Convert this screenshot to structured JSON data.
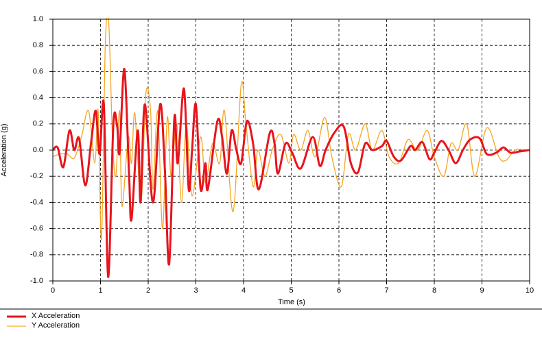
{
  "chart_data": {
    "type": "line",
    "x_label": "Time (s)",
    "y_label": "Acceleration (g)",
    "xlim": [
      0,
      10
    ],
    "ylim": [
      -1,
      1
    ],
    "xticks": [
      0,
      1,
      2,
      3,
      4,
      5,
      6,
      7,
      8,
      9,
      10
    ],
    "yticks": [
      {
        "value": -1,
        "label": "-1.0"
      },
      -0.8,
      -0.6,
      -0.4,
      -0.2,
      {
        "value": 0,
        "label": "0.0"
      },
      0.2,
      0.4,
      0.6,
      0.8,
      {
        "value": 1,
        "label": "1.0"
      }
    ],
    "grid": true,
    "legend": "bottom-left",
    "series": [
      {
        "name": "X Acceleration",
        "color": "#e8141c",
        "width": 3,
        "x": [
          0,
          0.1,
          0.22,
          0.35,
          0.45,
          0.55,
          0.68,
          0.8,
          0.9,
          0.98,
          1.07,
          1.16,
          1.27,
          1.35,
          1.4,
          1.5,
          1.6,
          1.65,
          1.78,
          1.84,
          1.93,
          2.1,
          2.25,
          2.35,
          2.44,
          2.55,
          2.62,
          2.75,
          2.85,
          2.92,
          3.0,
          3.1,
          3.2,
          3.25,
          3.45,
          3.55,
          3.65,
          3.75,
          3.85,
          3.95,
          4.07,
          4.2,
          4.32,
          4.55,
          4.65,
          4.72,
          4.88,
          5.02,
          5.2,
          5.45,
          5.6,
          5.72,
          5.9,
          6.1,
          6.25,
          6.4,
          6.55,
          6.7,
          6.9,
          7.0,
          7.15,
          7.3,
          7.5,
          7.6,
          7.75,
          7.9,
          8.0,
          8.15,
          8.3,
          8.45,
          8.6,
          8.75,
          8.95,
          9.1,
          9.3,
          9.45,
          9.6,
          9.8,
          10.0
        ],
        "values": [
          0,
          0.02,
          -0.13,
          0.15,
          0.0,
          0.09,
          -0.27,
          0.05,
          0.3,
          -0.03,
          0.35,
          -0.97,
          0.2,
          0.18,
          -0.02,
          0.62,
          -0.2,
          -0.53,
          0.15,
          -0.4,
          0.35,
          -0.4,
          0.35,
          -0.15,
          -0.87,
          0.25,
          -0.1,
          0.47,
          -0.3,
          0.0,
          0.35,
          -0.3,
          -0.1,
          -0.3,
          0.22,
          0.1,
          -0.18,
          0.15,
          0.0,
          -0.1,
          0.22,
          0.05,
          -0.3,
          0.13,
          0.05,
          -0.18,
          0.05,
          -0.02,
          -0.14,
          0.1,
          -0.12,
          0.0,
          0.13,
          0.18,
          -0.1,
          -0.17,
          0.05,
          0.0,
          0.03,
          0.07,
          -0.05,
          -0.08,
          0.03,
          0.0,
          0.06,
          -0.07,
          -0.02,
          0.07,
          0.0,
          -0.1,
          0.0,
          0.08,
          0.09,
          -0.03,
          -0.02,
          0.02,
          -0.02,
          -0.01,
          0.0
        ]
      },
      {
        "name": "Y Acceleration",
        "color": "#f5a623",
        "width": 1.3,
        "x": [
          0,
          0.15,
          0.3,
          0.45,
          0.6,
          0.75,
          0.88,
          0.95,
          1.02,
          1.1,
          1.17,
          1.25,
          1.32,
          1.4,
          1.45,
          1.58,
          1.65,
          1.72,
          1.85,
          1.95,
          2.05,
          2.1,
          2.2,
          2.3,
          2.4,
          2.48,
          2.6,
          2.7,
          2.8,
          2.92,
          3.1,
          3.2,
          3.35,
          3.5,
          3.6,
          3.78,
          3.95,
          4.05,
          4.2,
          4.3,
          4.45,
          4.6,
          4.78,
          4.95,
          5.05,
          5.2,
          5.35,
          5.5,
          5.7,
          5.85,
          6.05,
          6.2,
          6.35,
          6.55,
          6.7,
          6.9,
          7.05,
          7.25,
          7.45,
          7.65,
          7.85,
          8.0,
          8.2,
          8.35,
          8.5,
          8.68,
          8.85,
          9.1,
          9.35,
          9.5,
          9.7,
          10.0
        ],
        "values": [
          -0.05,
          -0.03,
          -0.03,
          -0.06,
          0.1,
          0.3,
          -0.1,
          0.3,
          -0.68,
          0.8,
          0.99,
          0.1,
          -0.2,
          0.3,
          -0.43,
          0.1,
          -0.1,
          0.28,
          -0.4,
          0.43,
          0.3,
          -0.3,
          0.3,
          -0.6,
          0.25,
          -0.2,
          0.2,
          -0.4,
          0.2,
          -0.35,
          0.1,
          -0.25,
          0.05,
          -0.1,
          0.3,
          -0.47,
          0.5,
          0.2,
          -0.28,
          0.0,
          -0.2,
          0.0,
          0.12,
          -0.1,
          0.12,
          0.0,
          0.15,
          -0.05,
          0.25,
          -0.05,
          -0.28,
          0.12,
          0.0,
          0.2,
          0.0,
          0.15,
          -0.05,
          -0.1,
          0.08,
          0.0,
          0.15,
          -0.05,
          -0.2,
          0.05,
          0.0,
          0.2,
          -0.2,
          0.17,
          -0.05,
          -0.08,
          0.0,
          0.0
        ]
      }
    ]
  }
}
